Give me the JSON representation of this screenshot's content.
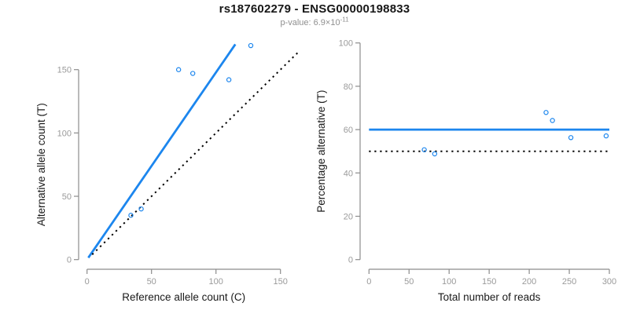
{
  "header": {
    "title": "rs187602279 - ENSG00000198833",
    "subtitle_text": "p-value: 6.9×10",
    "subtitle_exponent": "-11"
  },
  "colors": {
    "accent_blue": "#1c86ee",
    "reference_line_black": "#000000",
    "axis_gray": "#8c8c8c",
    "tick_label_gray": "#9a9a9a",
    "axis_label_color": "#1a1a1a",
    "subtitle_gray": "#8f8f8f",
    "background": "#ffffff"
  },
  "chart_data": [
    {
      "type": "scatter",
      "panel": "left",
      "title": "",
      "xlabel": "Reference allele count (C)",
      "ylabel": "Alternative allele count (T)",
      "xticks": [
        0,
        50,
        100,
        150
      ],
      "yticks": [
        0,
        50,
        100,
        150
      ],
      "xlim": [
        0,
        165
      ],
      "ylim": [
        0,
        172
      ],
      "grid": false,
      "legend": null,
      "points": [
        [
          34,
          35
        ],
        [
          42,
          40
        ],
        [
          71,
          150
        ],
        [
          82,
          147
        ],
        [
          110,
          142
        ],
        [
          127,
          169
        ]
      ],
      "lines": [
        {
          "name": "regression-fit",
          "style": "solid",
          "color_key": "accent_blue",
          "x1": 1,
          "y1": 1.5,
          "x2": 115,
          "y2": 170
        },
        {
          "name": "identity-diagonal",
          "style": "dotted",
          "color_key": "reference_line_black",
          "x1": 4,
          "y1": 4,
          "x2": 164,
          "y2": 164
        }
      ]
    },
    {
      "type": "scatter",
      "panel": "right",
      "title": "",
      "xlabel": "Total number of reads",
      "ylabel": "Percentage alternative (T)",
      "xticks": [
        0,
        50,
        100,
        150,
        200,
        250,
        300
      ],
      "yticks": [
        0,
        20,
        40,
        60,
        80,
        100
      ],
      "xlim": [
        0,
        300
      ],
      "ylim": [
        0,
        100
      ],
      "grid": false,
      "legend": null,
      "points": [
        [
          69,
          50.7
        ],
        [
          82,
          48.8
        ],
        [
          221,
          67.9
        ],
        [
          229,
          64.2
        ],
        [
          252,
          56.3
        ],
        [
          296,
          57.1
        ]
      ],
      "lines": [
        {
          "name": "mean-percentage",
          "style": "solid",
          "color_key": "accent_blue",
          "y": 60
        },
        {
          "name": "fifty-percent-reference",
          "style": "dotted",
          "color_key": "reference_line_black",
          "y": 50
        }
      ]
    }
  ]
}
